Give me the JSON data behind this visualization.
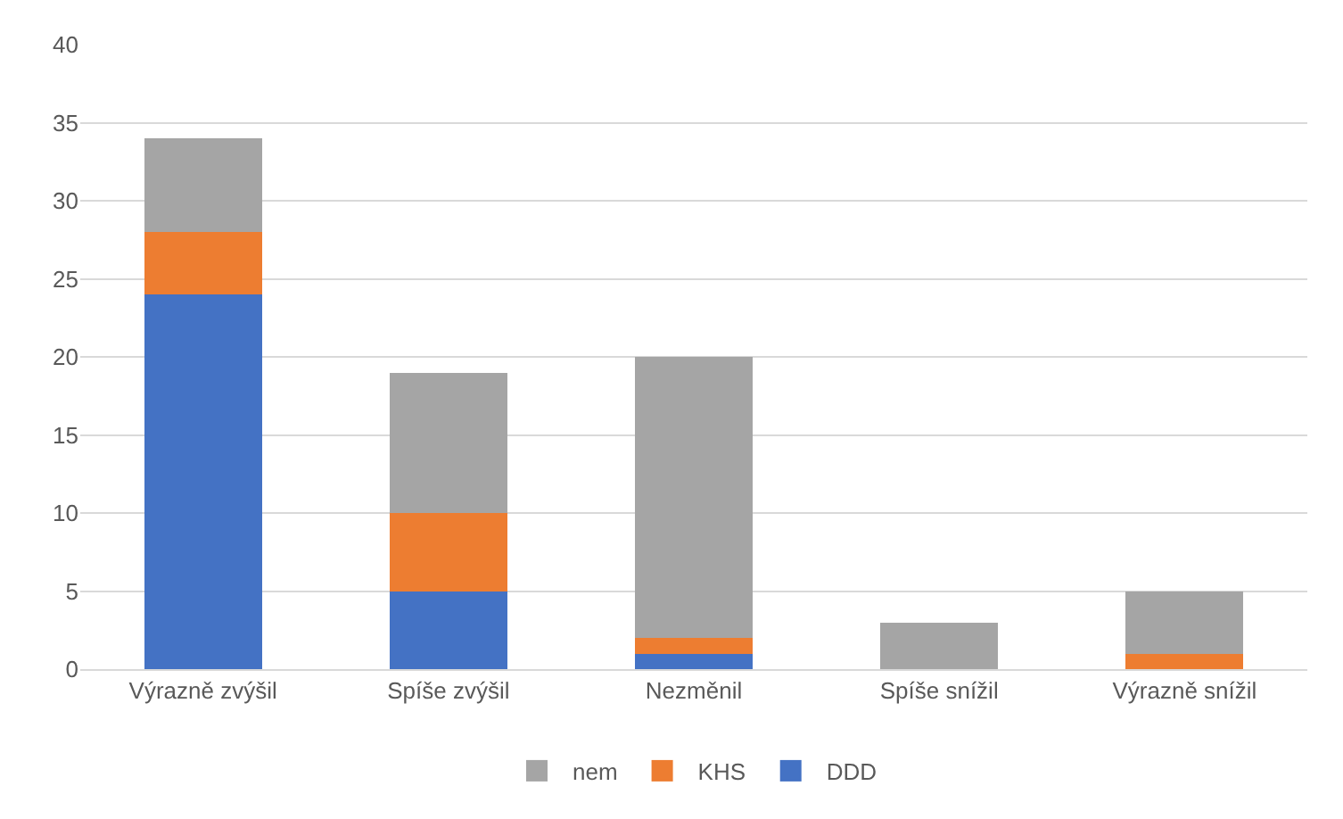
{
  "chart_data": {
    "type": "bar",
    "stacked": true,
    "categories": [
      "Výrazně zvýšil",
      "Spíše zvýšil",
      "Nezměnil",
      "Spíše snížil",
      "Výrazně snížil"
    ],
    "series": [
      {
        "name": "DDD",
        "color": "#4472c4",
        "values": [
          24,
          5,
          1,
          0,
          0
        ]
      },
      {
        "name": "KHS",
        "color": "#ed7d31",
        "values": [
          4,
          5,
          1,
          0,
          1
        ]
      },
      {
        "name": "nem",
        "color": "#a5a5a5",
        "values": [
          6,
          9,
          18,
          3,
          4
        ]
      }
    ],
    "ylim": [
      0,
      40
    ],
    "yticks": [
      0,
      5,
      10,
      15,
      20,
      25,
      30,
      35,
      40
    ],
    "grid": "y",
    "legend": "bottom"
  }
}
